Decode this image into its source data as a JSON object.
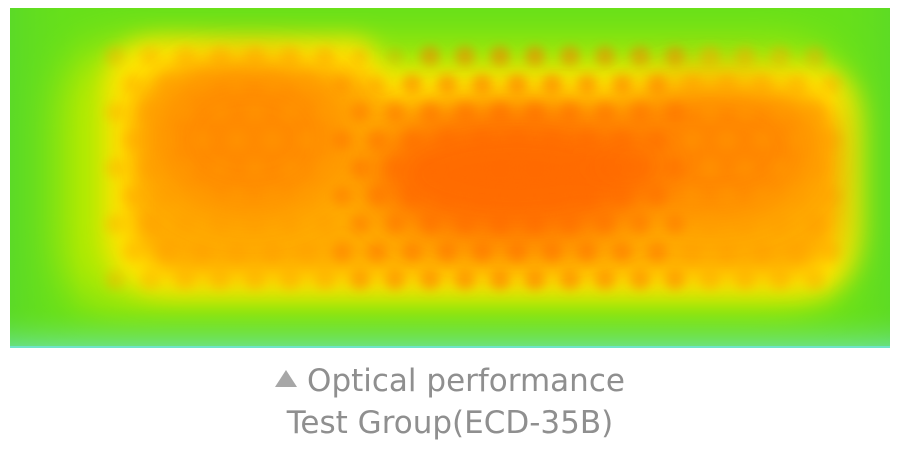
{
  "image": {
    "subject": "optical-performance-heatmap",
    "colors": {
      "edge": "#66e01a",
      "outer": "#b3ea00",
      "middle": "#ffe400",
      "inner": "#ff8f00",
      "hot": "#ff5a00",
      "bottom_edge": "#6fe4c8"
    }
  },
  "caption": {
    "icon": "triangle-icon",
    "line1": "Optical performance",
    "line2": "Test Group(ECD-35B)"
  }
}
